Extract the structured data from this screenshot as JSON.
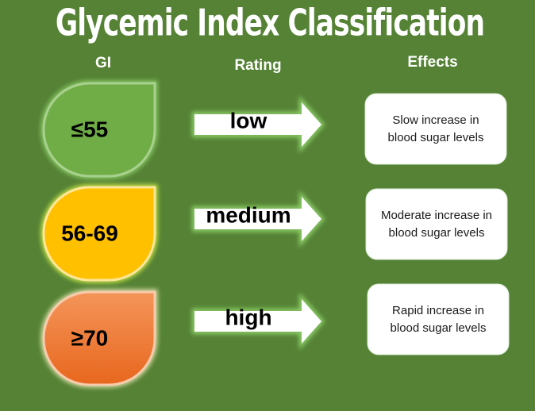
{
  "title": "Glycemic Index Classification",
  "headers": {
    "gi": "GI",
    "rating": "Rating",
    "effects": "Effects"
  },
  "rows": [
    {
      "gi": "≤55",
      "rating": "low",
      "effect": [
        "Slow increase in",
        "blood sugar levels"
      ]
    },
    {
      "gi": "56-69",
      "rating": "medium",
      "effect": [
        "Moderate increase in",
        "blood sugar levels"
      ]
    },
    {
      "gi": "≥70",
      "rating": "high",
      "effect": [
        "Rapid increase in",
        "blood sugar levels"
      ]
    }
  ]
}
